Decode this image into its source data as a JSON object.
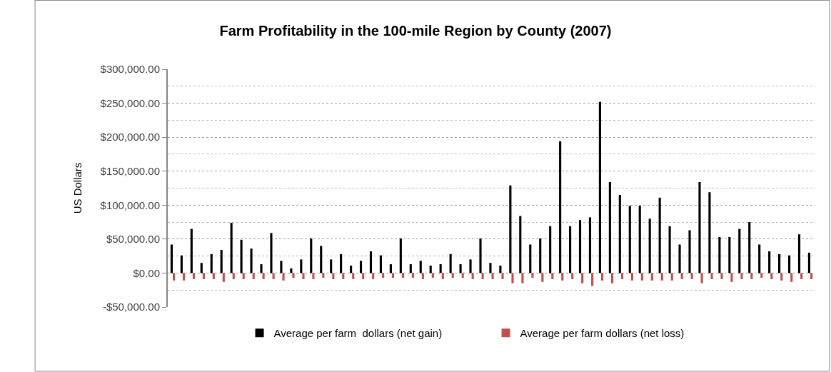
{
  "chart_data": {
    "type": "bar",
    "title": "Farm Profitability in the 100-mile Region by County (2007)",
    "ylabel": "US Dollars",
    "categories": [
      null,
      null,
      null,
      null,
      null,
      null,
      null,
      null,
      null,
      null,
      null,
      null,
      null,
      null,
      null,
      null,
      null,
      null,
      null,
      null,
      null,
      null,
      null,
      null,
      null,
      null,
      null,
      null,
      null,
      null,
      null,
      null,
      null,
      null,
      null,
      null,
      null,
      null,
      null,
      null,
      null,
      null,
      null,
      null,
      null,
      null,
      null,
      null,
      null,
      null,
      null,
      null,
      null,
      null,
      null,
      null,
      null,
      null,
      null,
      null,
      null,
      null,
      null,
      null,
      null
    ],
    "series": [
      {
        "name": "Average per farm  dollars (net gain)",
        "color": "#000000",
        "values": [
          42000,
          26000,
          65000,
          15000,
          28000,
          34000,
          74000,
          49000,
          36000,
          13000,
          59000,
          18000,
          7000,
          20000,
          51000,
          40000,
          20000,
          28000,
          11000,
          18000,
          32000,
          26000,
          13000,
          51000,
          13000,
          18000,
          11000,
          13000,
          28000,
          13000,
          20000,
          51000,
          15000,
          11000,
          129000,
          84000,
          42000,
          51000,
          69000,
          194000,
          69000,
          78000,
          82000,
          252000,
          134000,
          115000,
          99000,
          99000,
          80000,
          111000,
          69000,
          42000,
          63000,
          134000,
          119000,
          53000,
          53000,
          65000,
          75000,
          42000,
          32000,
          28000,
          26000,
          57000,
          30000
        ]
      },
      {
        "name": "Average per farm dollars (net loss)",
        "color": "#c0504d",
        "values": [
          -11000,
          -11000,
          -9000,
          -9000,
          -9000,
          -13000,
          -9000,
          -9000,
          -9000,
          -9000,
          -9000,
          -11000,
          -7000,
          -9000,
          -9000,
          -7000,
          -9000,
          -9000,
          -9000,
          -9000,
          -9000,
          -7000,
          -7000,
          -7000,
          -7000,
          -9000,
          -7000,
          -9000,
          -7000,
          -7000,
          -9000,
          -9000,
          -9000,
          -9000,
          -15000,
          -15000,
          -7000,
          -13000,
          -9000,
          -11000,
          -9000,
          -15000,
          -19000,
          -11000,
          -15000,
          -9000,
          -11000,
          -11000,
          -11000,
          -11000,
          -11000,
          -9000,
          -9000,
          -15000,
          -9000,
          -9000,
          -13000,
          -9000,
          -9000,
          -7000,
          -9000,
          -11000,
          -13000,
          -9000,
          -9000
        ]
      }
    ],
    "ylim": [
      -50000,
      300000
    ],
    "yticks": [
      {
        "value": -50000,
        "label": "-$50,000.00"
      },
      {
        "value": 0,
        "label": "$0.00"
      },
      {
        "value": 50000,
        "label": "$50,000.00"
      },
      {
        "value": 100000,
        "label": "$100,000.00"
      },
      {
        "value": 150000,
        "label": "$150,000.00"
      },
      {
        "value": 200000,
        "label": "$200,000.00"
      },
      {
        "value": 250000,
        "label": "$250,000.00"
      },
      {
        "value": 300000,
        "label": "$300,000.00"
      }
    ],
    "grid": "y",
    "legend": "bottom"
  }
}
